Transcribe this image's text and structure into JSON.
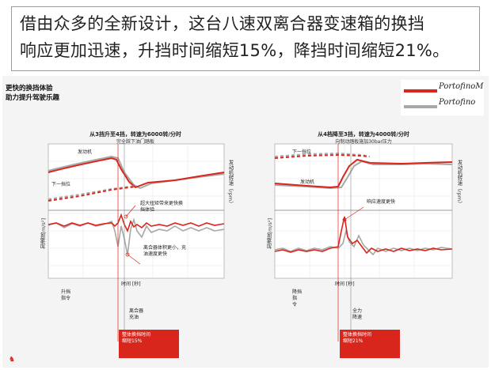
{
  "headline": {
    "line1": "借由众多的全新设计，这台八速双离合器变速箱的换挡",
    "line2": "响应更加迅速，升挡时间缩短15%，降挡时间缩短21%。"
  },
  "subtitle": {
    "line1": "更快的换挡体验",
    "line2": "助力提升驾驶乐趣"
  },
  "legend": [
    {
      "label": "PortofinoM",
      "color": "#d9261c"
    },
    {
      "label": "Portofino",
      "color": "#a8a8a8"
    }
  ],
  "colors": {
    "accent": "#d9261c",
    "secondary": "#a8a8a8"
  },
  "logo_icon": "ferrari-horse-icon",
  "left_chart": {
    "title": "从3挡升至4挡，转速为6000转/分时",
    "sub": "完全踩下油门踏板",
    "engine_label": "发动机",
    "prev_gear_label": "下一挡位",
    "y_right": "发动机转速（rpm）",
    "y_left": "加速度[m/s²]",
    "annot1_l1": "超大扭矩带来更快换",
    "annot1_l2": "挡体验",
    "annot2_l1": "离合器体积更小，充",
    "annot2_l2": "油速度更快",
    "x_label": "时间 [秒]",
    "cmd_l1": "升挡",
    "cmd_l2": "指令",
    "clutch_l1": "离合器",
    "clutch_l2": "充油",
    "box_l1": "整体换挡时间",
    "box_l2": "缩短15%"
  },
  "right_chart": {
    "title": "从4档降至3挡，转速为4000转/分时",
    "sub": "向制动踏板施加30bar压力",
    "engine_label": "发动机",
    "prev_gear_label": "下一挡位",
    "y_right": "发动机转速（rpm）",
    "y_left": "加速度[m/s²]",
    "annot1": "响应速度更快",
    "x_label": "时间 [秒]",
    "cmd_l1": "降挡",
    "cmd_l2": "指",
    "cmd_l3": "令",
    "full_l1": "全力",
    "full_l2": "降速",
    "box_l1": "整体换挡时间",
    "box_l2": "缩短21%"
  }
}
